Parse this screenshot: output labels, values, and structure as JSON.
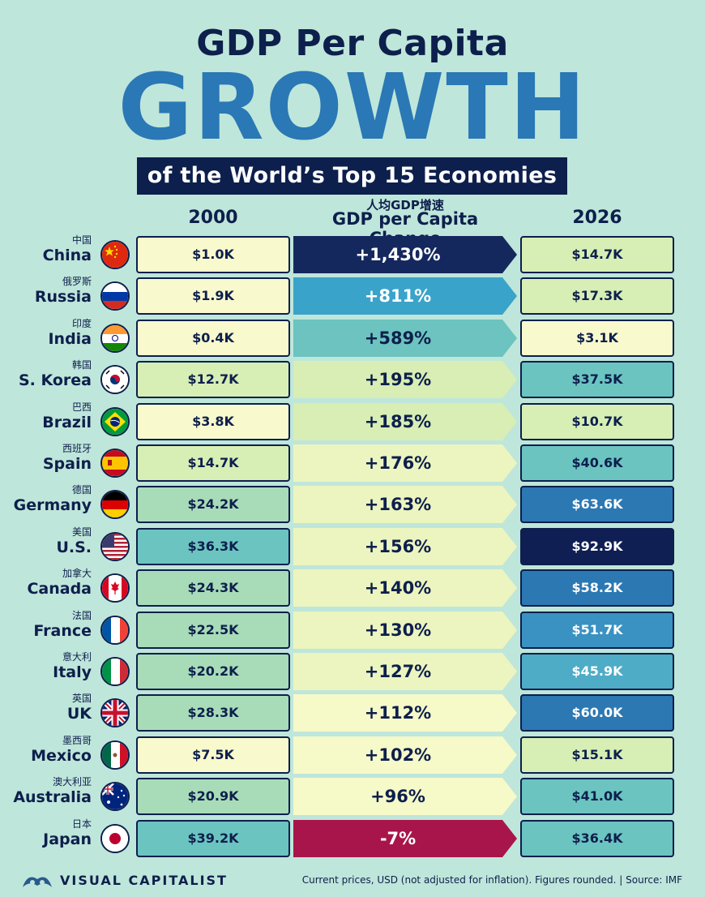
{
  "title": {
    "line1": "GDP Per Capita",
    "line2": "GROWTH",
    "line3": "of the World’s Top 15 Economies"
  },
  "columns": {
    "year_start": "2000",
    "change_cn": "人均GDP增速",
    "change_en": "GDP per Capita Change",
    "year_end": "2026"
  },
  "colors": {
    "navy": "#0d1f4c",
    "blue_title": "#2a78b5",
    "background": "#bfe6da",
    "negative": "#a8154a",
    "light": "#f6f9c8"
  },
  "chart_data": {
    "type": "table",
    "unit": "USD",
    "rows": [
      {
        "name_cn": "中国",
        "name": "China",
        "flag": "china-flag-icon",
        "gdp_2000": "$1.0K",
        "change": "+1,430%",
        "gdp_2026": "$14.7K",
        "v2000": 1.0,
        "chg": 1430,
        "v2026": 14.7
      },
      {
        "name_cn": "俄罗斯",
        "name": "Russia",
        "flag": "russia-flag-icon",
        "gdp_2000": "$1.9K",
        "change": "+811%",
        "gdp_2026": "$17.3K",
        "v2000": 1.9,
        "chg": 811,
        "v2026": 17.3
      },
      {
        "name_cn": "印度",
        "name": "India",
        "flag": "india-flag-icon",
        "gdp_2000": "$0.4K",
        "change": "+589%",
        "gdp_2026": "$3.1K",
        "v2000": 0.4,
        "chg": 589,
        "v2026": 3.1
      },
      {
        "name_cn": "韩国",
        "name": "S. Korea",
        "flag": "south-korea-flag-icon",
        "gdp_2000": "$12.7K",
        "change": "+195%",
        "gdp_2026": "$37.5K",
        "v2000": 12.7,
        "chg": 195,
        "v2026": 37.5
      },
      {
        "name_cn": "巴西",
        "name": "Brazil",
        "flag": "brazil-flag-icon",
        "gdp_2000": "$3.8K",
        "change": "+185%",
        "gdp_2026": "$10.7K",
        "v2000": 3.8,
        "chg": 185,
        "v2026": 10.7
      },
      {
        "name_cn": "西班牙",
        "name": "Spain",
        "flag": "spain-flag-icon",
        "gdp_2000": "$14.7K",
        "change": "+176%",
        "gdp_2026": "$40.6K",
        "v2000": 14.7,
        "chg": 176,
        "v2026": 40.6
      },
      {
        "name_cn": "德国",
        "name": "Germany",
        "flag": "germany-flag-icon",
        "gdp_2000": "$24.2K",
        "change": "+163%",
        "gdp_2026": "$63.6K",
        "v2000": 24.2,
        "chg": 163,
        "v2026": 63.6
      },
      {
        "name_cn": "美国",
        "name": "U.S.",
        "flag": "usa-flag-icon",
        "gdp_2000": "$36.3K",
        "change": "+156%",
        "gdp_2026": "$92.9K",
        "v2000": 36.3,
        "chg": 156,
        "v2026": 92.9
      },
      {
        "name_cn": "加拿大",
        "name": "Canada",
        "flag": "canada-flag-icon",
        "gdp_2000": "$24.3K",
        "change": "+140%",
        "gdp_2026": "$58.2K",
        "v2000": 24.3,
        "chg": 140,
        "v2026": 58.2
      },
      {
        "name_cn": "法国",
        "name": "France",
        "flag": "france-flag-icon",
        "gdp_2000": "$22.5K",
        "change": "+130%",
        "gdp_2026": "$51.7K",
        "v2000": 22.5,
        "chg": 130,
        "v2026": 51.7
      },
      {
        "name_cn": "意大利",
        "name": "Italy",
        "flag": "italy-flag-icon",
        "gdp_2000": "$20.2K",
        "change": "+127%",
        "gdp_2026": "$45.9K",
        "v2000": 20.2,
        "chg": 127,
        "v2026": 45.9
      },
      {
        "name_cn": "英国",
        "name": "UK",
        "flag": "uk-flag-icon",
        "gdp_2000": "$28.3K",
        "change": "+112%",
        "gdp_2026": "$60.0K",
        "v2000": 28.3,
        "chg": 112,
        "v2026": 60.0
      },
      {
        "name_cn": "墨西哥",
        "name": "Mexico",
        "flag": "mexico-flag-icon",
        "gdp_2000": "$7.5K",
        "change": "+102%",
        "gdp_2026": "$15.1K",
        "v2000": 7.5,
        "chg": 102,
        "v2026": 15.1
      },
      {
        "name_cn": "澳大利亚",
        "name": "Australia",
        "flag": "australia-flag-icon",
        "gdp_2000": "$20.9K",
        "change": "+96%",
        "gdp_2026": "$41.0K",
        "v2000": 20.9,
        "chg": 96,
        "v2026": 41.0
      },
      {
        "name_cn": "日本",
        "name": "Japan",
        "flag": "japan-flag-icon",
        "gdp_2000": "$39.2K",
        "change": "-7%",
        "gdp_2026": "$36.4K",
        "v2000": 39.2,
        "chg": -7,
        "v2026": 36.4
      }
    ]
  },
  "footer": {
    "brand": "VISUAL CAPITALIST",
    "note": "Current prices, USD (not adjusted for inflation). Figures rounded. | Source: IMF"
  }
}
